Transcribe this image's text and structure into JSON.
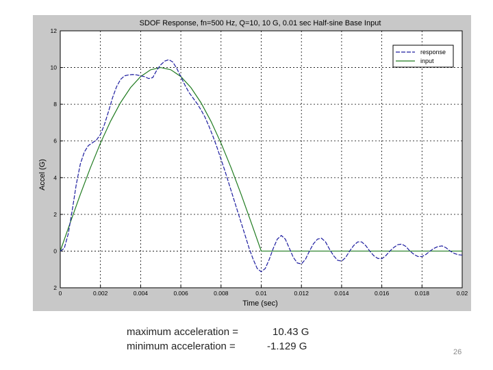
{
  "chart_data": {
    "type": "line",
    "title": "SDOF Response, fn=500 Hz, Q=10,    10 G, 0.01 sec Half-sine Base Input",
    "xlabel": "Time (sec)",
    "ylabel": "Accel (G)",
    "xlim": [
      0,
      0.02
    ],
    "ylim": [
      -2,
      12
    ],
    "x_ticks": [
      0,
      0.002,
      0.004,
      0.006,
      0.008,
      0.01,
      0.012,
      0.014,
      0.016,
      0.018,
      0.02
    ],
    "x_tick_labels": [
      "0",
      "0.002",
      "0.004",
      "0.006",
      "0.008",
      "0.01",
      "0.012",
      "0.014",
      "0.016",
      "0.018",
      "0.02"
    ],
    "y_ticks": [
      -2,
      0,
      2,
      4,
      6,
      8,
      10,
      12
    ],
    "y_tick_labels": [
      "2",
      "0",
      "2",
      "4",
      "6",
      "8",
      "10",
      "12"
    ],
    "grid": true,
    "legend_position": "top-right",
    "series": [
      {
        "name": "response",
        "color": "#1a1a9e",
        "style": "dashed",
        "x": [
          0,
          0.0002,
          0.0004,
          0.0006,
          0.0008,
          0.001,
          0.0012,
          0.0014,
          0.0016,
          0.0018,
          0.002,
          0.0022,
          0.0024,
          0.0026,
          0.0028,
          0.003,
          0.0032,
          0.0034,
          0.0036,
          0.0038,
          0.004,
          0.0042,
          0.0044,
          0.0046,
          0.0048,
          0.005,
          0.0052,
          0.0054,
          0.0056,
          0.0058,
          0.006,
          0.0062,
          0.0064,
          0.0066,
          0.0068,
          0.007,
          0.0072,
          0.0074,
          0.0076,
          0.0078,
          0.008,
          0.0082,
          0.0084,
          0.0086,
          0.0088,
          0.009,
          0.0092,
          0.0094,
          0.0096,
          0.0098,
          0.01,
          0.0102,
          0.0104,
          0.0106,
          0.0108,
          0.011,
          0.0112,
          0.0114,
          0.0116,
          0.0118,
          0.012,
          0.0122,
          0.0124,
          0.0126,
          0.0128,
          0.013,
          0.0132,
          0.0134,
          0.0136,
          0.0138,
          0.014,
          0.0142,
          0.0144,
          0.0146,
          0.0148,
          0.015,
          0.0152,
          0.0154,
          0.0156,
          0.0158,
          0.016,
          0.0162,
          0.0164,
          0.0166,
          0.0168,
          0.017,
          0.0172,
          0.0174,
          0.0176,
          0.0178,
          0.018,
          0.0182,
          0.0184,
          0.0186,
          0.0188,
          0.019,
          0.0192,
          0.0194,
          0.0196,
          0.0198,
          0.02
        ],
        "y": [
          0,
          0.15,
          0.95,
          2.25,
          3.65,
          4.75,
          5.4,
          5.75,
          5.9,
          6.05,
          6.35,
          6.9,
          7.6,
          8.35,
          8.95,
          9.35,
          9.55,
          9.6,
          9.62,
          9.6,
          9.55,
          9.5,
          9.4,
          9.45,
          9.85,
          10.15,
          10.35,
          10.43,
          10.3,
          9.95,
          9.5,
          9.05,
          8.65,
          8.35,
          8.05,
          7.7,
          7.3,
          6.8,
          6.25,
          5.65,
          5.0,
          4.35,
          3.65,
          2.95,
          2.25,
          1.55,
          0.85,
          0.15,
          -0.45,
          -0.95,
          -1.129,
          -0.95,
          -0.45,
          0.15,
          0.65,
          0.85,
          0.65,
          0.15,
          -0.35,
          -0.65,
          -0.7,
          -0.45,
          0.0,
          0.4,
          0.65,
          0.7,
          0.5,
          0.1,
          -0.25,
          -0.5,
          -0.55,
          -0.35,
          0.0,
          0.3,
          0.5,
          0.5,
          0.3,
          0.0,
          -0.25,
          -0.4,
          -0.42,
          -0.25,
          0.0,
          0.2,
          0.35,
          0.38,
          0.25,
          0.0,
          -0.18,
          -0.3,
          -0.3,
          -0.18,
          0.0,
          0.15,
          0.25,
          0.28,
          0.18,
          0.0,
          -0.12,
          -0.2,
          -0.22
        ]
      },
      {
        "name": "input",
        "color": "#1e7a1e",
        "style": "solid",
        "x": [
          0,
          0.0005,
          0.001,
          0.0015,
          0.002,
          0.0025,
          0.003,
          0.0035,
          0.004,
          0.0045,
          0.005,
          0.0055,
          0.006,
          0.0065,
          0.007,
          0.0075,
          0.008,
          0.0085,
          0.009,
          0.0095,
          0.01,
          0.011,
          0.012,
          0.013,
          0.014,
          0.015,
          0.016,
          0.017,
          0.018,
          0.019,
          0.02
        ],
        "y": [
          0,
          1.56,
          3.09,
          4.54,
          5.88,
          7.07,
          8.09,
          8.91,
          9.51,
          9.88,
          10.0,
          9.88,
          9.51,
          8.91,
          8.09,
          7.07,
          5.88,
          4.54,
          3.09,
          1.56,
          0,
          0,
          0,
          0,
          0,
          0,
          0,
          0,
          0,
          0,
          0
        ]
      }
    ]
  },
  "stats": {
    "max_label": "maximum acceleration =",
    "max_value": "10.43 G",
    "min_label": "minimum acceleration =",
    "min_value": "-1.129 G"
  },
  "slide_number": "26"
}
